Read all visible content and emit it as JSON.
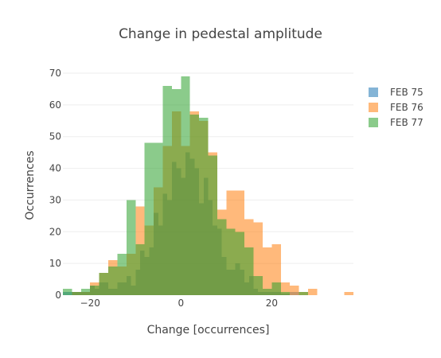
{
  "chart_data": {
    "type": "histogram",
    "title": "Change in pedestal amplitude",
    "xlabel": "Change [occurrences]",
    "ylabel": "Occurrences",
    "xlim": [
      -26,
      38
    ],
    "ylim": [
      0,
      70
    ],
    "y_ticks": [
      0,
      10,
      20,
      30,
      40,
      50,
      60,
      70
    ],
    "x_ticks": [
      -20,
      0,
      20
    ],
    "x_tick_labels": [
      "−20",
      "0",
      "20"
    ],
    "grid": true,
    "legend_position": "top-right",
    "barmode": "overlay",
    "series": [
      {
        "name": "FEB 75",
        "color": "#1f77b4",
        "bins": [
          [
            -26,
            -24,
            1
          ],
          [
            -24,
            -22,
            1
          ],
          [
            -22,
            -20,
            1
          ],
          [
            -20,
            -19,
            3
          ],
          [
            -19,
            -18,
            2
          ],
          [
            -18,
            -16,
            4
          ],
          [
            -16,
            -14,
            2
          ],
          [
            -14,
            -12,
            4
          ],
          [
            -12,
            -11,
            6
          ],
          [
            -11,
            -10,
            3
          ],
          [
            -10,
            -9,
            8
          ],
          [
            -9,
            -8,
            14
          ],
          [
            -8,
            -7,
            12
          ],
          [
            -7,
            -6,
            15
          ],
          [
            -6,
            -5,
            26
          ],
          [
            -5,
            -4,
            22
          ],
          [
            -4,
            -3,
            32
          ],
          [
            -3,
            -2,
            30
          ],
          [
            -2,
            -1,
            42
          ],
          [
            -1,
            0,
            40
          ],
          [
            0,
            1,
            37
          ],
          [
            1,
            2,
            45
          ],
          [
            2,
            3,
            43
          ],
          [
            3,
            4,
            40
          ],
          [
            4,
            5,
            29
          ],
          [
            5,
            6,
            37
          ],
          [
            6,
            7,
            30
          ],
          [
            7,
            8,
            22
          ],
          [
            8,
            9,
            21
          ],
          [
            9,
            10,
            12
          ],
          [
            10,
            11,
            8
          ],
          [
            11,
            12,
            8
          ],
          [
            12,
            13,
            10
          ],
          [
            13,
            14,
            8
          ],
          [
            14,
            15,
            4
          ],
          [
            15,
            16,
            6
          ],
          [
            16,
            17,
            2
          ],
          [
            17,
            18,
            1
          ],
          [
            18,
            20,
            1
          ],
          [
            20,
            22,
            1
          ],
          [
            22,
            24,
            0.5
          ],
          [
            24,
            26,
            1
          ]
        ]
      },
      {
        "name": "FEB 76",
        "color": "#ff7f0e",
        "bins": [
          [
            -26,
            -24,
            0
          ],
          [
            -24,
            -22,
            1
          ],
          [
            -22,
            -20,
            1
          ],
          [
            -20,
            -18,
            4
          ],
          [
            -18,
            -16,
            7
          ],
          [
            -16,
            -14,
            11
          ],
          [
            -14,
            -12,
            9
          ],
          [
            -12,
            -10,
            13
          ],
          [
            -10,
            -8,
            28
          ],
          [
            -8,
            -6,
            22
          ],
          [
            -6,
            -4,
            34
          ],
          [
            -4,
            -2,
            47
          ],
          [
            -2,
            0,
            58
          ],
          [
            0,
            2,
            47
          ],
          [
            2,
            4,
            58
          ],
          [
            4,
            6,
            55
          ],
          [
            6,
            8,
            45
          ],
          [
            8,
            10,
            27
          ],
          [
            10,
            12,
            33
          ],
          [
            12,
            14,
            33
          ],
          [
            14,
            16,
            24
          ],
          [
            16,
            18,
            23
          ],
          [
            18,
            20,
            15
          ],
          [
            20,
            22,
            16
          ],
          [
            22,
            24,
            4
          ],
          [
            24,
            26,
            3
          ],
          [
            26,
            28,
            1
          ],
          [
            28,
            30,
            2
          ],
          [
            30,
            32,
            0
          ],
          [
            32,
            34,
            0
          ],
          [
            34,
            36,
            0
          ],
          [
            36,
            38,
            1
          ]
        ]
      },
      {
        "name": "FEB 77",
        "color": "#2ca02c",
        "bins": [
          [
            -26,
            -24,
            2
          ],
          [
            -24,
            -22,
            1
          ],
          [
            -22,
            -20,
            2
          ],
          [
            -20,
            -18,
            3
          ],
          [
            -18,
            -16,
            7
          ],
          [
            -16,
            -14,
            9
          ],
          [
            -14,
            -12,
            13
          ],
          [
            -12,
            -10,
            30
          ],
          [
            -10,
            -8,
            16
          ],
          [
            -8,
            -6,
            48
          ],
          [
            -6,
            -4,
            48
          ],
          [
            -4,
            -2,
            66
          ],
          [
            -2,
            0,
            65
          ],
          [
            0,
            2,
            69
          ],
          [
            2,
            4,
            57
          ],
          [
            4,
            6,
            56
          ],
          [
            6,
            8,
            44
          ],
          [
            8,
            10,
            24
          ],
          [
            10,
            12,
            21
          ],
          [
            12,
            14,
            20
          ],
          [
            14,
            16,
            15
          ],
          [
            16,
            18,
            6
          ],
          [
            18,
            20,
            2
          ],
          [
            20,
            22,
            4
          ],
          [
            22,
            24,
            1
          ],
          [
            24,
            26,
            0
          ],
          [
            26,
            28,
            1
          ]
        ]
      }
    ]
  }
}
